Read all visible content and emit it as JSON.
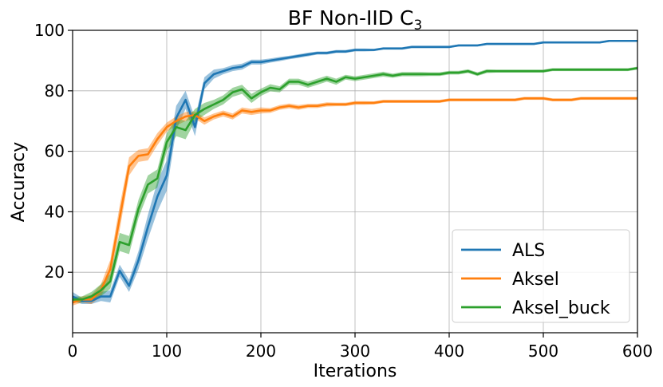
{
  "chart_data": {
    "type": "line",
    "title": "BF Non-IID C",
    "title_subscript": "3",
    "xlabel": "Iterations",
    "ylabel": "Accuracy",
    "xlim": [
      0,
      600
    ],
    "ylim": [
      0,
      100
    ],
    "xticks": [
      0,
      100,
      200,
      300,
      400,
      500,
      600
    ],
    "yticks": [
      20,
      40,
      60,
      80,
      100
    ],
    "grid": true,
    "legend_position": "lower-right",
    "x": [
      0,
      10,
      20,
      30,
      40,
      50,
      60,
      70,
      80,
      90,
      100,
      110,
      120,
      130,
      140,
      150,
      160,
      170,
      180,
      190,
      200,
      210,
      220,
      230,
      240,
      250,
      260,
      270,
      280,
      290,
      300,
      310,
      320,
      330,
      340,
      350,
      360,
      370,
      380,
      390,
      400,
      410,
      420,
      430,
      440,
      450,
      460,
      470,
      480,
      490,
      500,
      510,
      520,
      530,
      540,
      550,
      560,
      570,
      580,
      590,
      600
    ],
    "series": [
      {
        "name": "ALS",
        "color": "#1f77b4",
        "values": [
          12,
          10.5,
          10.5,
          12,
          12,
          20.5,
          15.5,
          24,
          35,
          45,
          52,
          71,
          77,
          68,
          82.5,
          85.5,
          86.5,
          87.5,
          88,
          89.5,
          89.5,
          90,
          90.5,
          91,
          91.5,
          92,
          92.5,
          92.5,
          93,
          93,
          93.5,
          93.5,
          93.5,
          94,
          94,
          94,
          94.5,
          94.5,
          94.5,
          94.5,
          94.5,
          95,
          95,
          95,
          95.5,
          95.5,
          95.5,
          95.5,
          95.5,
          95.5,
          96,
          96,
          96,
          96,
          96,
          96,
          96,
          96.5,
          96.5,
          96.5,
          96.5
        ],
        "band": [
          1.5,
          1,
          1,
          1.5,
          2,
          2,
          2,
          3,
          4,
          5,
          5,
          4,
          3,
          3,
          2,
          1.5,
          1,
          1,
          1,
          0.8,
          0.8,
          0.7,
          0.7,
          0.6,
          0.6,
          0.6,
          0.5,
          0.5,
          0.5,
          0.5,
          0.5,
          0.5,
          0.4,
          0.4,
          0.4,
          0.4,
          0.4,
          0.4,
          0.4,
          0.4,
          0.4,
          0.3,
          0.3,
          0.3,
          0.3,
          0.3,
          0.3,
          0.3,
          0.3,
          0.3,
          0.3,
          0.3,
          0.3,
          0.3,
          0.3,
          0.3,
          0.3,
          0.3,
          0.3,
          0.3,
          0.3
        ]
      },
      {
        "name": "Aksel",
        "color": "#ff7f0e",
        "values": [
          10,
          11,
          11,
          14,
          21,
          38,
          55,
          58.5,
          59,
          64,
          68,
          70,
          71.5,
          72,
          70,
          71.5,
          72.5,
          71.5,
          73.5,
          73,
          73.5,
          73.5,
          74.5,
          75,
          74.5,
          75,
          75,
          75.5,
          75.5,
          75.5,
          76,
          76,
          76,
          76.5,
          76.5,
          76.5,
          76.5,
          76.5,
          76.5,
          76.5,
          77,
          77,
          77,
          77,
          77,
          77,
          77,
          77,
          77.5,
          77.5,
          77.5,
          77,
          77,
          77,
          77.5,
          77.5,
          77.5,
          77.5,
          77.5,
          77.5,
          77.5
        ],
        "band": [
          1,
          1,
          1.5,
          2,
          3,
          4,
          3,
          2,
          2,
          2,
          1.5,
          1.5,
          1.5,
          1.2,
          1.2,
          1,
          1,
          1,
          1,
          1,
          1,
          0.8,
          0.8,
          0.8,
          0.8,
          0.7,
          0.7,
          0.7,
          0.6,
          0.6,
          0.6,
          0.6,
          0.5,
          0.5,
          0.5,
          0.5,
          0.5,
          0.5,
          0.5,
          0.5,
          0.5,
          0.5,
          0.5,
          0.5,
          0.5,
          0.5,
          0.5,
          0.5,
          0.5,
          0.5,
          0.5,
          0.5,
          0.5,
          0.5,
          0.5,
          0.5,
          0.5,
          0.5,
          0.5,
          0.5,
          0.5
        ]
      },
      {
        "name": "Aksel_buck",
        "color": "#2ca02c",
        "values": [
          11,
          11,
          12,
          14,
          17,
          30,
          29,
          41,
          49,
          51,
          63,
          68,
          67,
          72,
          74,
          75.5,
          77,
          79.5,
          80.5,
          77.5,
          79.5,
          81,
          80.5,
          83,
          83,
          82,
          83,
          84,
          83,
          84.5,
          84,
          84.5,
          85,
          85.5,
          85,
          85.5,
          85.5,
          85.5,
          85.5,
          85.5,
          86,
          86,
          86.5,
          85.5,
          86.5,
          86.5,
          86.5,
          86.5,
          86.5,
          86.5,
          86.5,
          87,
          87,
          87,
          87,
          87,
          87,
          87,
          87,
          87,
          87.5
        ],
        "band": [
          1,
          1,
          1.5,
          2,
          2.5,
          3,
          3,
          3,
          3,
          3,
          3,
          3,
          3,
          2,
          2,
          1.5,
          1.5,
          1.5,
          1.5,
          1.5,
          1.2,
          1.2,
          1,
          1,
          1,
          1,
          1,
          1,
          1,
          0.8,
          0.8,
          0.8,
          0.8,
          0.8,
          0.7,
          0.7,
          0.7,
          0.7,
          0.6,
          0.6,
          0.6,
          0.6,
          0.6,
          0.6,
          0.6,
          0.5,
          0.5,
          0.5,
          0.5,
          0.5,
          0.5,
          0.5,
          0.5,
          0.5,
          0.5,
          0.5,
          0.5,
          0.5,
          0.5,
          0.5,
          0.5
        ]
      }
    ]
  }
}
